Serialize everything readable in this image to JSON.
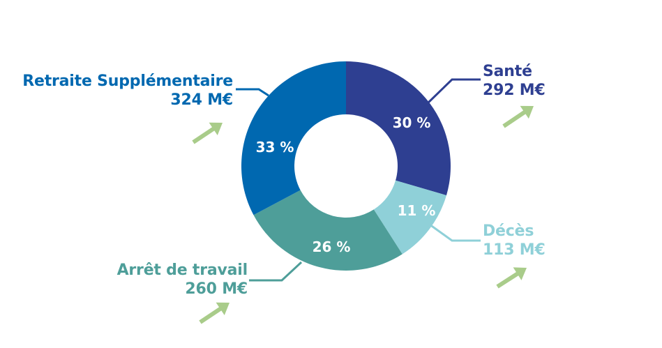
{
  "chart_data": {
    "type": "pie",
    "categories": [
      "Santé",
      "Décès",
      "Arrêt de travail",
      "Retraite Supplémentaire"
    ],
    "values": [
      292,
      113,
      260,
      324
    ],
    "percent_labels": [
      "30 %",
      "11 %",
      "26 %",
      "33 %"
    ],
    "amount_labels": [
      "292 M€",
      "113 M€",
      "260 M€",
      "324 M€"
    ],
    "colors": [
      "#2e3f91",
      "#8fd0d8",
      "#4e9e99",
      "#0068b0"
    ],
    "arrow_color": "#a9cc8a",
    "donut": true
  }
}
